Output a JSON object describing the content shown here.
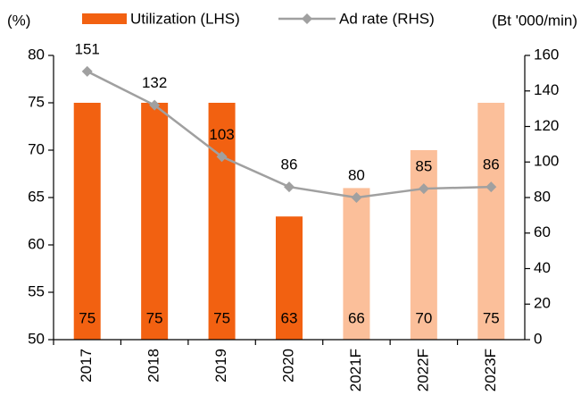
{
  "chart_data": {
    "type": "bar",
    "y_label": "(%)",
    "y2_label": "(Bt '000/min)",
    "categories": [
      "2017",
      "2018",
      "2019",
      "2020",
      "2021F",
      "2022F",
      "2023F"
    ],
    "series": [
      {
        "name": "Utilization (LHS)",
        "type": "bar",
        "color": "#f26111",
        "colors": [
          "#f26111",
          "#f26111",
          "#f26111",
          "#f26111",
          "#fbbf9a",
          "#fbbf9a",
          "#fbbf9a"
        ],
        "values": [
          75,
          75,
          75,
          63,
          66,
          70,
          75
        ]
      },
      {
        "name": "Ad rate (RHS)",
        "type": "line",
        "axis": "y2",
        "color": "#a0a0a0",
        "values": [
          151,
          132,
          103,
          86,
          80,
          85,
          86
        ]
      }
    ],
    "ylim": [
      50,
      80
    ],
    "yticks": [
      50,
      55,
      60,
      65,
      70,
      75,
      80
    ],
    "y2lim": [
      0,
      160
    ],
    "y2ticks": [
      0,
      20,
      40,
      60,
      80,
      100,
      120,
      140,
      160
    ]
  }
}
